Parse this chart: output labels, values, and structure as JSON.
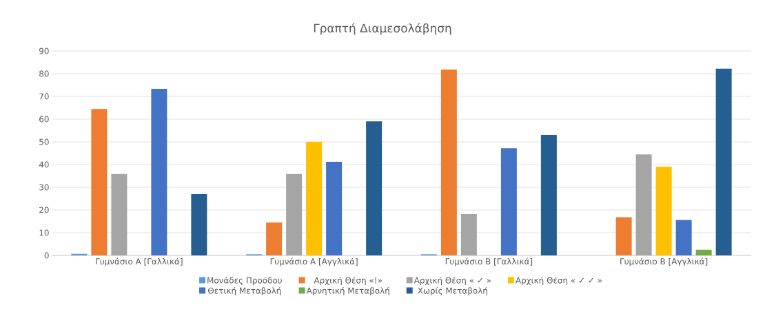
{
  "chart_data": {
    "type": "bar",
    "title": "Γραπτή Διαμεσολάβηση",
    "categories": [
      "Γυμνάσιο Α [Γαλλικά]",
      "Γυμνάσιο Α [Αγγλικά]",
      "Γυμνάσιο Β [Γαλλικά]",
      "Γυμνάσιο Β [Αγγλικά]"
    ],
    "series": [
      {
        "name": "Μονάδες Προόδου",
        "color": "#5b9bd5",
        "values": [
          0.7,
          0.5,
          0.5,
          null
        ]
      },
      {
        "name": "Αρχική Θέση «!»",
        "color": "#ed7d31",
        "values": [
          64.5,
          14.5,
          81.8,
          16.8
        ]
      },
      {
        "name": "Αρχική Θέση « ✓ »",
        "color": "#a5a5a5",
        "values": [
          35.8,
          35.8,
          18.2,
          44.5
        ]
      },
      {
        "name": "Αρχική Θέση « ✓ ✓ »",
        "color": "#ffc000",
        "values": [
          null,
          50,
          null,
          39
        ]
      },
      {
        "name": "Θετική Μεταβολή",
        "color": "#4472c4",
        "values": [
          73.3,
          41.2,
          47.2,
          15.6
        ]
      },
      {
        "name": "Αρνητική Μεταβολή",
        "color": "#70ad47",
        "values": [
          null,
          null,
          null,
          2.5
        ]
      },
      {
        "name": "Χωρίς Μεταβολή",
        "color": "#255e91",
        "values": [
          27,
          59,
          53,
          82.2
        ]
      }
    ],
    "ylim": [
      0,
      90
    ],
    "yticks": [
      0,
      10,
      20,
      30,
      40,
      50,
      60,
      70,
      80,
      90
    ],
    "grid": "y",
    "legend": "bottom"
  }
}
